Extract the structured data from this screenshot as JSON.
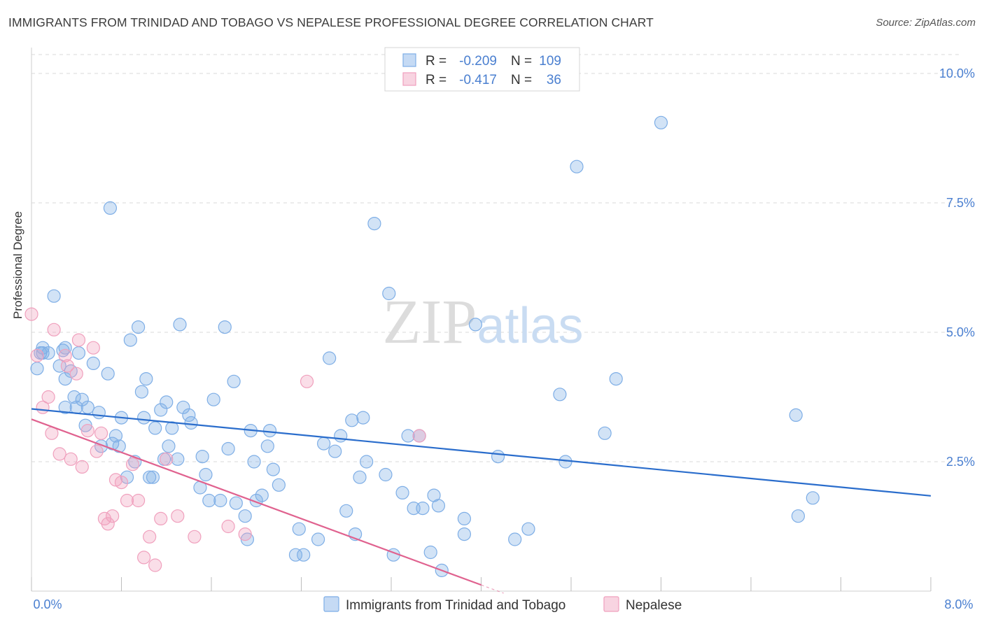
{
  "title": "IMMIGRANTS FROM TRINIDAD AND TOBAGO VS NEPALESE PROFESSIONAL DEGREE CORRELATION CHART",
  "source": "Source: ZipAtlas.com",
  "watermark": {
    "part1": "ZIP",
    "part2": "atlas"
  },
  "colors": {
    "blue": "#7eaee6",
    "blue_line": "#2a6dcc",
    "pink": "#f0a0bd",
    "pink_line": "#e0628f",
    "axis_text": "#4a7fd0",
    "grid": "#d9d9d9"
  },
  "legend_top": [
    {
      "r_label": "R =",
      "r_value": "-0.209",
      "n_label": "N =",
      "n_value": "109",
      "color": "blue"
    },
    {
      "r_label": "R =",
      "r_value": "-0.417",
      "n_label": "N =",
      "n_value": "36",
      "color": "pink"
    }
  ],
  "chart_data": {
    "type": "scatter",
    "title": "IMMIGRANTS FROM TRINIDAD AND TOBAGO VS NEPALESE PROFESSIONAL DEGREE CORRELATION CHART",
    "xlabel": "",
    "ylabel": "Professional Degree",
    "xlim": [
      0,
      8.0
    ],
    "ylim": [
      0,
      10.5
    ],
    "x_tick_labels": [
      "0.0%",
      "8.0%"
    ],
    "y_ticks": [
      2.5,
      5.0,
      7.5,
      10.0
    ],
    "y_tick_labels": [
      "2.5%",
      "5.0%",
      "7.5%",
      "10.0%"
    ],
    "grid": true,
    "legend_position": "bottom",
    "series": [
      {
        "name": "Immigrants from Trinidad and Tobago",
        "color": "#7eaee6",
        "trend": {
          "x": [
            0.0,
            8.0
          ],
          "y": [
            3.52,
            1.84
          ]
        },
        "points": [
          [
            0.05,
            4.3
          ],
          [
            0.08,
            4.6
          ],
          [
            0.1,
            4.7
          ],
          [
            0.15,
            4.6
          ],
          [
            0.2,
            5.7
          ],
          [
            0.25,
            4.35
          ],
          [
            0.3,
            4.1
          ],
          [
            0.3,
            4.7
          ],
          [
            0.3,
            3.55
          ],
          [
            0.35,
            4.25
          ],
          [
            0.38,
            3.75
          ],
          [
            0.4,
            3.55
          ],
          [
            0.42,
            4.6
          ],
          [
            0.45,
            3.7
          ],
          [
            0.48,
            3.2
          ],
          [
            0.5,
            3.55
          ],
          [
            0.55,
            4.4
          ],
          [
            0.6,
            3.45
          ],
          [
            0.62,
            2.8
          ],
          [
            0.68,
            4.2
          ],
          [
            0.7,
            7.4
          ],
          [
            0.72,
            2.85
          ],
          [
            0.75,
            3.0
          ],
          [
            0.78,
            2.8
          ],
          [
            0.8,
            3.35
          ],
          [
            0.85,
            2.2
          ],
          [
            0.88,
            4.85
          ],
          [
            0.92,
            2.5
          ],
          [
            0.95,
            5.1
          ],
          [
            0.98,
            3.85
          ],
          [
            1.0,
            3.35
          ],
          [
            1.02,
            4.1
          ],
          [
            1.05,
            2.2
          ],
          [
            1.08,
            2.2
          ],
          [
            1.1,
            3.15
          ],
          [
            1.15,
            3.5
          ],
          [
            1.18,
            2.55
          ],
          [
            1.2,
            3.65
          ],
          [
            1.22,
            2.8
          ],
          [
            1.25,
            3.15
          ],
          [
            1.3,
            2.55
          ],
          [
            1.32,
            5.15
          ],
          [
            1.35,
            3.55
          ],
          [
            1.4,
            3.4
          ],
          [
            1.42,
            3.25
          ],
          [
            1.5,
            2.0
          ],
          [
            1.52,
            2.6
          ],
          [
            1.55,
            2.25
          ],
          [
            1.58,
            1.75
          ],
          [
            1.62,
            3.7
          ],
          [
            1.68,
            1.75
          ],
          [
            1.72,
            5.1
          ],
          [
            1.75,
            2.75
          ],
          [
            1.8,
            4.05
          ],
          [
            1.82,
            1.7
          ],
          [
            1.9,
            1.45
          ],
          [
            1.92,
            1.0
          ],
          [
            1.95,
            3.1
          ],
          [
            1.98,
            2.5
          ],
          [
            2.0,
            1.75
          ],
          [
            2.05,
            1.85
          ],
          [
            2.1,
            2.8
          ],
          [
            2.12,
            3.1
          ],
          [
            2.15,
            2.35
          ],
          [
            2.2,
            2.05
          ],
          [
            2.35,
            0.7
          ],
          [
            2.38,
            1.2
          ],
          [
            2.42,
            0.7
          ],
          [
            2.6,
            2.85
          ],
          [
            2.55,
            1.0
          ],
          [
            2.65,
            4.5
          ],
          [
            2.7,
            2.7
          ],
          [
            2.75,
            3.0
          ],
          [
            2.8,
            1.55
          ],
          [
            2.85,
            3.3
          ],
          [
            2.88,
            1.1
          ],
          [
            2.92,
            2.2
          ],
          [
            2.95,
            3.35
          ],
          [
            2.98,
            2.5
          ],
          [
            3.05,
            7.1
          ],
          [
            3.15,
            2.25
          ],
          [
            3.18,
            5.75
          ],
          [
            3.22,
            0.7
          ],
          [
            3.3,
            1.9
          ],
          [
            3.35,
            3.0
          ],
          [
            3.4,
            1.6
          ],
          [
            3.45,
            3.0
          ],
          [
            3.48,
            1.6
          ],
          [
            3.55,
            0.75
          ],
          [
            3.58,
            1.85
          ],
          [
            3.62,
            1.65
          ],
          [
            3.65,
            0.4
          ],
          [
            3.85,
            1.1
          ],
          [
            3.85,
            1.4
          ],
          [
            3.95,
            5.15
          ],
          [
            4.15,
            2.6
          ],
          [
            4.3,
            1.0
          ],
          [
            4.42,
            1.2
          ],
          [
            4.7,
            3.8
          ],
          [
            4.75,
            2.5
          ],
          [
            4.85,
            8.2
          ],
          [
            5.1,
            3.05
          ],
          [
            5.2,
            4.1
          ],
          [
            5.6,
            9.05
          ],
          [
            6.8,
            3.4
          ],
          [
            6.82,
            1.45
          ],
          [
            6.95,
            1.8
          ],
          [
            0.1,
            4.6
          ],
          [
            0.28,
            4.65
          ]
        ]
      },
      {
        "name": "Nepalese",
        "color": "#f0a0bd",
        "trend": {
          "x": [
            0.0,
            4.0
          ],
          "y": [
            3.32,
            0.12
          ]
        },
        "points": [
          [
            0.0,
            5.35
          ],
          [
            0.05,
            4.55
          ],
          [
            0.1,
            3.55
          ],
          [
            0.15,
            3.75
          ],
          [
            0.18,
            3.05
          ],
          [
            0.2,
            5.05
          ],
          [
            0.25,
            2.65
          ],
          [
            0.3,
            4.55
          ],
          [
            0.32,
            4.35
          ],
          [
            0.35,
            2.55
          ],
          [
            0.4,
            4.2
          ],
          [
            0.42,
            4.85
          ],
          [
            0.45,
            2.4
          ],
          [
            0.5,
            3.1
          ],
          [
            0.55,
            4.7
          ],
          [
            0.58,
            2.7
          ],
          [
            0.62,
            3.05
          ],
          [
            0.65,
            1.4
          ],
          [
            0.68,
            1.3
          ],
          [
            0.72,
            1.45
          ],
          [
            0.75,
            2.15
          ],
          [
            0.8,
            2.1
          ],
          [
            0.85,
            1.75
          ],
          [
            0.9,
            2.45
          ],
          [
            0.95,
            1.75
          ],
          [
            1.0,
            0.65
          ],
          [
            1.05,
            1.05
          ],
          [
            1.1,
            0.5
          ],
          [
            1.15,
            1.4
          ],
          [
            1.2,
            2.55
          ],
          [
            1.3,
            1.45
          ],
          [
            1.45,
            1.05
          ],
          [
            1.75,
            1.25
          ],
          [
            1.9,
            1.1
          ],
          [
            2.45,
            4.05
          ],
          [
            3.45,
            3.0
          ]
        ]
      }
    ]
  }
}
